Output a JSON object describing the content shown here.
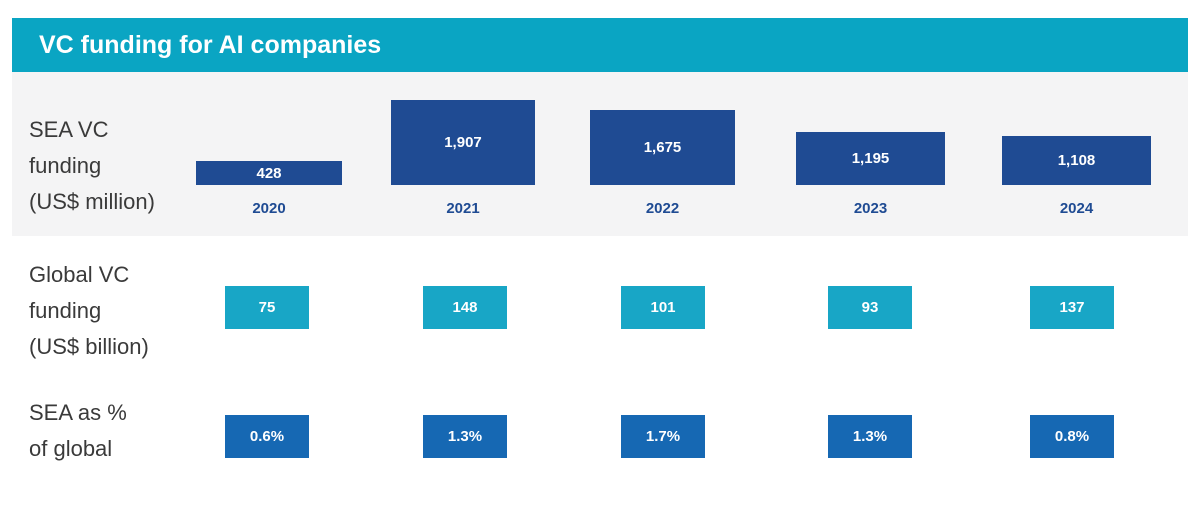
{
  "title": "VC funding for AI companies",
  "rows": {
    "sea": [
      "SEA VC",
      "funding",
      "(US$ million)"
    ],
    "global": [
      "Global VC",
      "funding",
      "(US$ billion)"
    ],
    "pct": [
      "SEA as %",
      "of global"
    ]
  },
  "colors": {
    "header": "#0aa5c3",
    "sea_bar": "#1f4b93",
    "global_box": "#18a6c6",
    "pct_box": "#1668b3"
  },
  "chart_data": {
    "type": "bar",
    "title": "VC funding for AI companies",
    "categories": [
      "2020",
      "2021",
      "2022",
      "2023",
      "2024"
    ],
    "series": [
      {
        "name": "SEA VC funding (US$ million)",
        "values": [
          428,
          1907,
          1675,
          1195,
          1108
        ],
        "labels": [
          "428",
          "1,907",
          "1,675",
          "1,195",
          "1,108"
        ]
      },
      {
        "name": "Global VC funding (US$ billion)",
        "values": [
          75,
          148,
          101,
          93,
          137
        ],
        "labels": [
          "75",
          "148",
          "101",
          "93",
          "137"
        ]
      },
      {
        "name": "SEA as % of global",
        "values": [
          0.6,
          1.3,
          1.7,
          1.3,
          0.8
        ],
        "labels": [
          "0.6%",
          "1.3%",
          "1.7%",
          "1.3%",
          "0.8%"
        ]
      }
    ]
  }
}
